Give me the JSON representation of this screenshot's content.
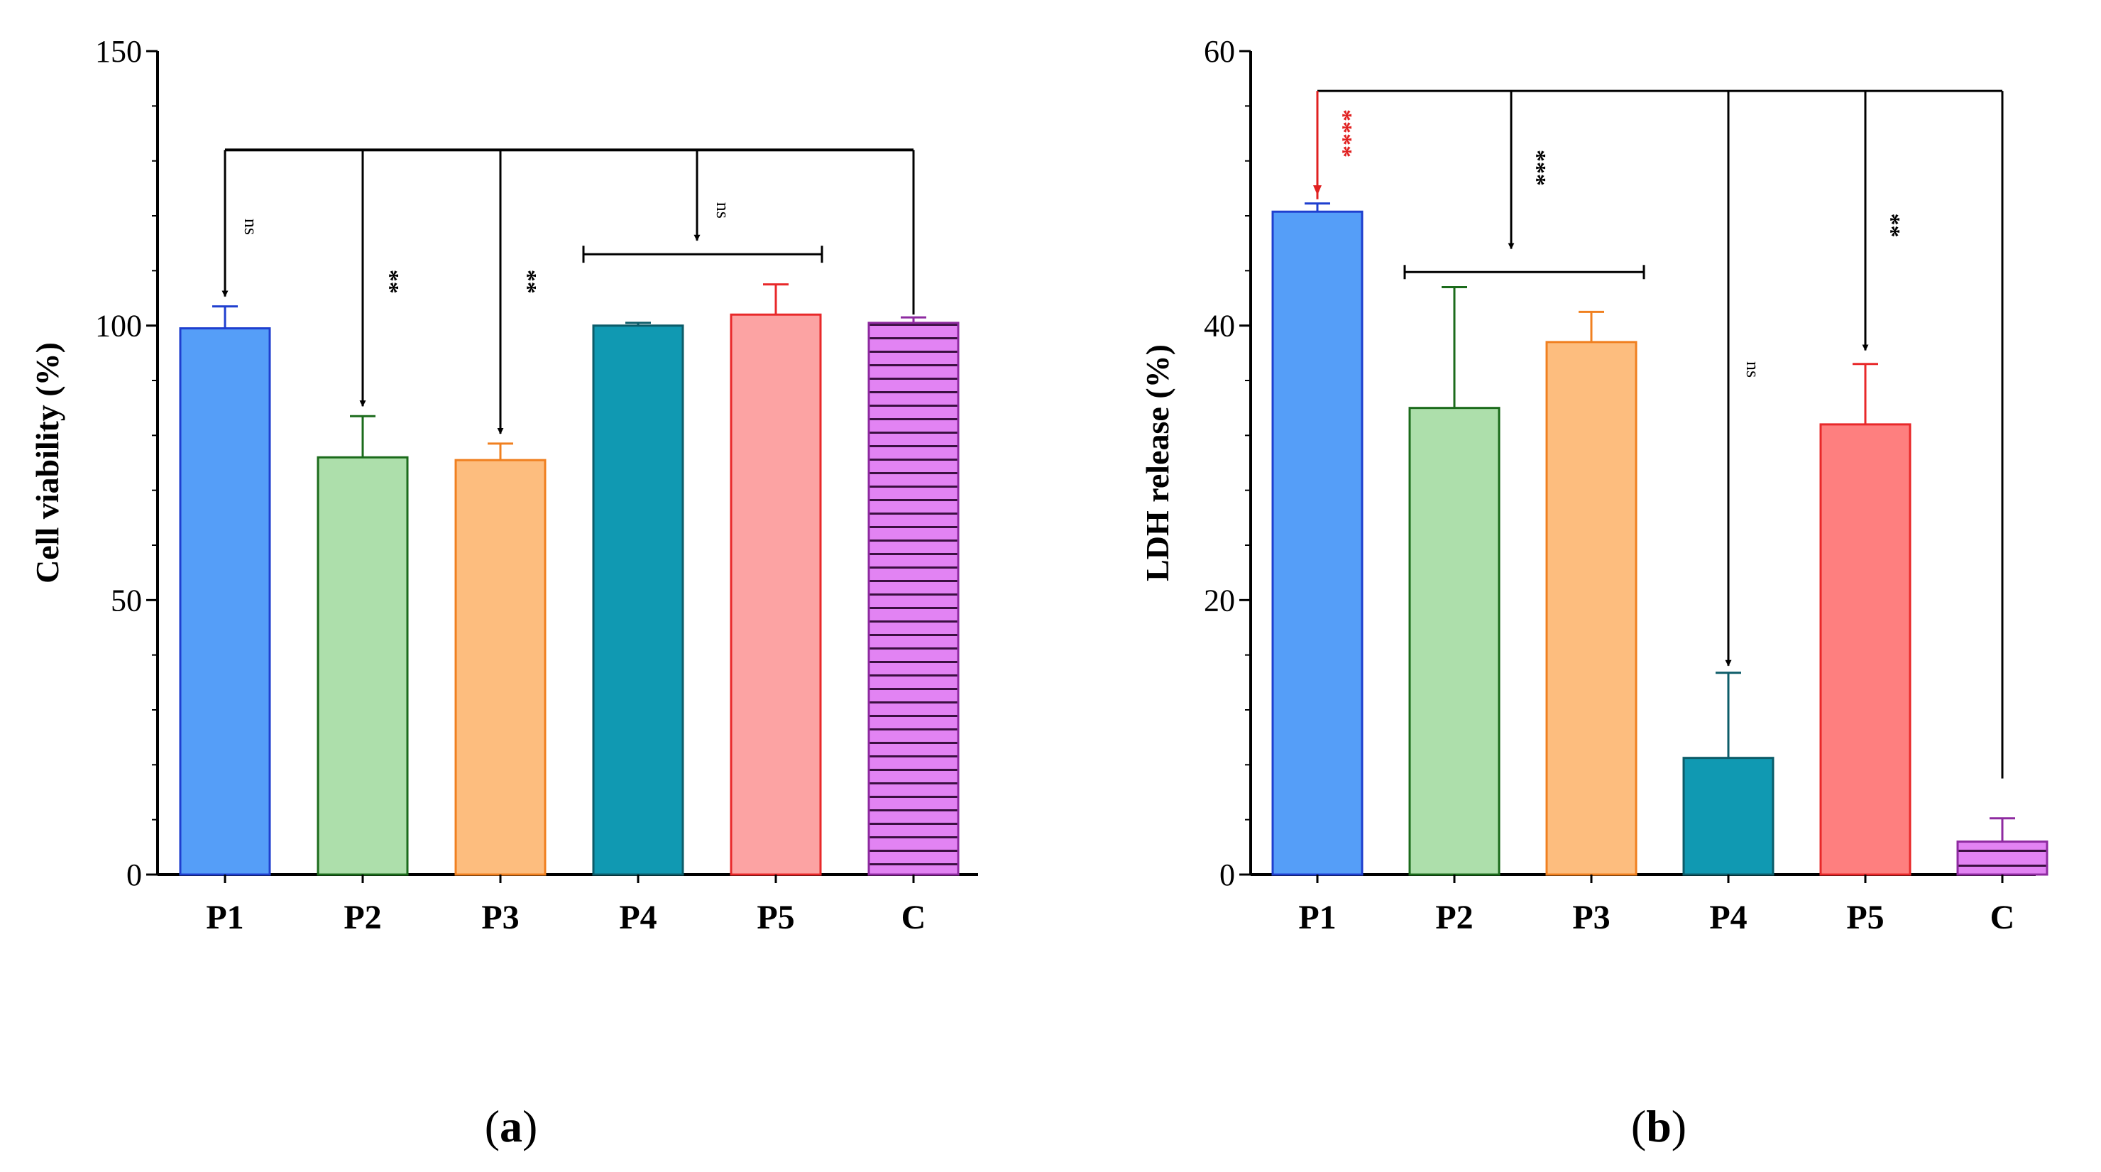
{
  "chart_data": [
    {
      "type": "bar",
      "panel_label": "a",
      "title": "",
      "xlabel": "",
      "ylabel": "Cell viability (%)",
      "ylim": [
        0,
        150
      ],
      "yticks": [
        0,
        50,
        100,
        150
      ],
      "categories": [
        "P1",
        "P2",
        "P3",
        "P4",
        "P5",
        "C"
      ],
      "values": [
        99.5,
        76,
        75.5,
        100,
        102,
        100.5
      ],
      "errors": [
        4,
        7.5,
        3,
        0.5,
        5.5,
        1
      ],
      "colors": [
        "#559ef8",
        "#addfab",
        "#fdbd7e",
        "#1099b2",
        "#fca3a3",
        "#e283f3"
      ],
      "edge_colors": [
        "#1f3fcf",
        "#1b6b1b",
        "#f08020",
        "#0c5c69",
        "#e8282a",
        "#8e2aa0"
      ],
      "patterns": [
        "",
        "",
        "",
        "",
        "",
        "horizontal-lines"
      ],
      "comparisons": [
        {
          "target": "P1",
          "label": "ns"
        },
        {
          "target": "P2",
          "label": "**"
        },
        {
          "target": "P3",
          "label": "**"
        },
        {
          "target": "P4-P5",
          "label": "ns"
        }
      ]
    },
    {
      "type": "bar",
      "panel_label": "b",
      "title": "",
      "xlabel": "",
      "ylabel": "LDH release (%)",
      "ylim": [
        0,
        60
      ],
      "yticks": [
        0,
        20,
        40,
        60
      ],
      "categories": [
        "P1",
        "P2",
        "P3",
        "P4",
        "P5",
        "C"
      ],
      "values": [
        48.3,
        34,
        38.8,
        8.5,
        32.8,
        2.4
      ],
      "errors": [
        0.6,
        8.8,
        2.2,
        6.2,
        4.4,
        1.7
      ],
      "colors": [
        "#559ef8",
        "#addfab",
        "#fdbd7e",
        "#1099b2",
        "#fe7f7f",
        "#e283f3"
      ],
      "edge_colors": [
        "#1f3fcf",
        "#1b6b1b",
        "#f08020",
        "#0c5c69",
        "#e8282a",
        "#8e2aa0"
      ],
      "patterns": [
        "",
        "",
        "",
        "",
        "",
        "horizontal-lines"
      ],
      "comparisons": [
        {
          "target": "P1",
          "label": "****",
          "color": "#e02020"
        },
        {
          "target": "P2-P3",
          "label": "***"
        },
        {
          "target": "P4",
          "label": "ns"
        },
        {
          "target": "P5",
          "label": "**"
        }
      ]
    }
  ]
}
